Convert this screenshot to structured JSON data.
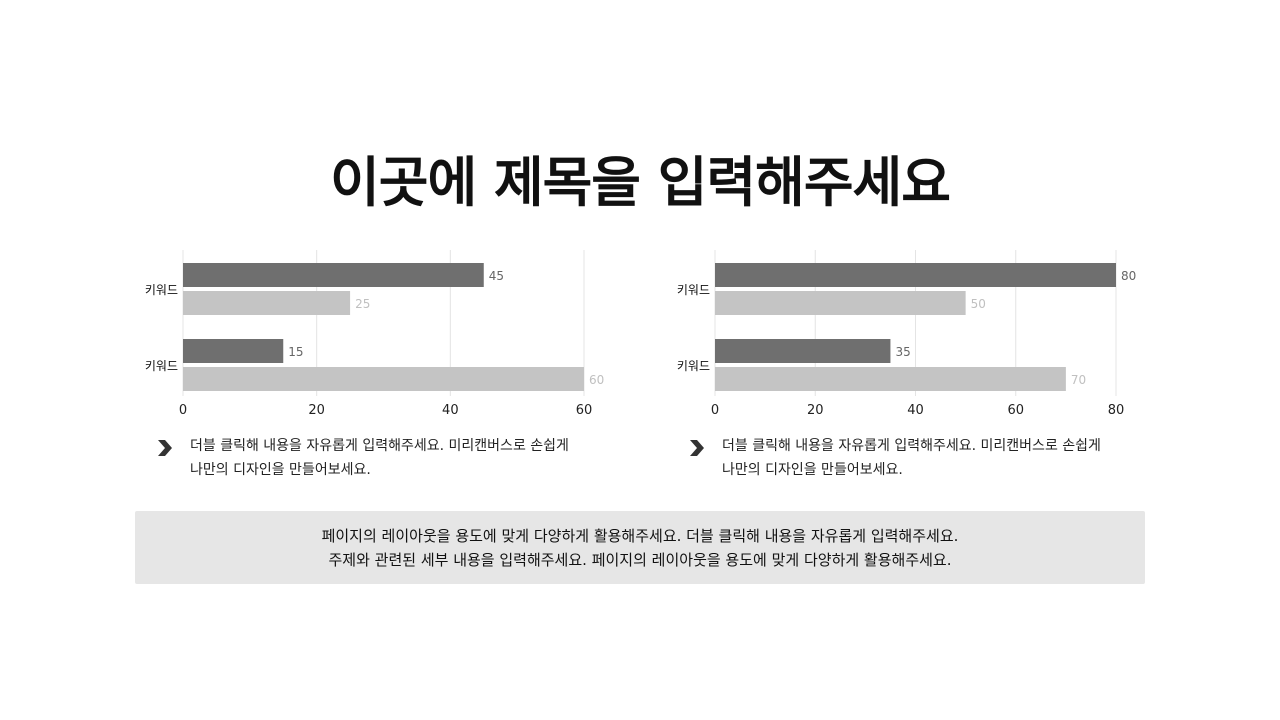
{
  "title": "이곳에 제목을 입력해주세요",
  "chart_data": [
    {
      "type": "bar",
      "orientation": "horizontal",
      "categories": [
        "키워드",
        "키워드"
      ],
      "series": [
        {
          "values": [
            45,
            15
          ],
          "color": "#6f6f6f"
        },
        {
          "values": [
            25,
            60
          ],
          "color": "#c4c4c4"
        }
      ],
      "xlim": [
        0,
        60
      ],
      "xticks": [
        0,
        20,
        40,
        60
      ],
      "grid": true
    },
    {
      "type": "bar",
      "orientation": "horizontal",
      "categories": [
        "키워드",
        "키워드"
      ],
      "series": [
        {
          "values": [
            80,
            35
          ],
          "color": "#6f6f6f"
        },
        {
          "values": [
            50,
            70
          ],
          "color": "#c4c4c4"
        }
      ],
      "xlim": [
        0,
        80
      ],
      "xticks": [
        0,
        20,
        40,
        60,
        80
      ],
      "grid": true
    }
  ],
  "bullets": [
    {
      "line1": "더블 클릭해 내용을 자유롭게 입력해주세요. 미리캔버스로 손쉽게",
      "line2": "나만의 디자인을 만들어보세요."
    },
    {
      "line1": "더블 클릭해 내용을 자유롭게 입력해주세요. 미리캔버스로 손쉽게",
      "line2": "나만의 디자인을 만들어보세요."
    }
  ],
  "note": {
    "line1": "페이지의 레이아웃을 용도에 맞게 다양하게 활용해주세요. 더블 클릭해 내용을 자유롭게 입력해주세요.",
    "line2": "주제와 관련된 세부 내용을 입력해주세요. 페이지의 레이아웃을 용도에 맞게 다양하게 활용해주세요."
  },
  "colors": {
    "bar_dark": "#6f6f6f",
    "bar_light": "#c4c4c4",
    "grid": "#e4e4e4",
    "note_bg": "#e6e6e6"
  }
}
